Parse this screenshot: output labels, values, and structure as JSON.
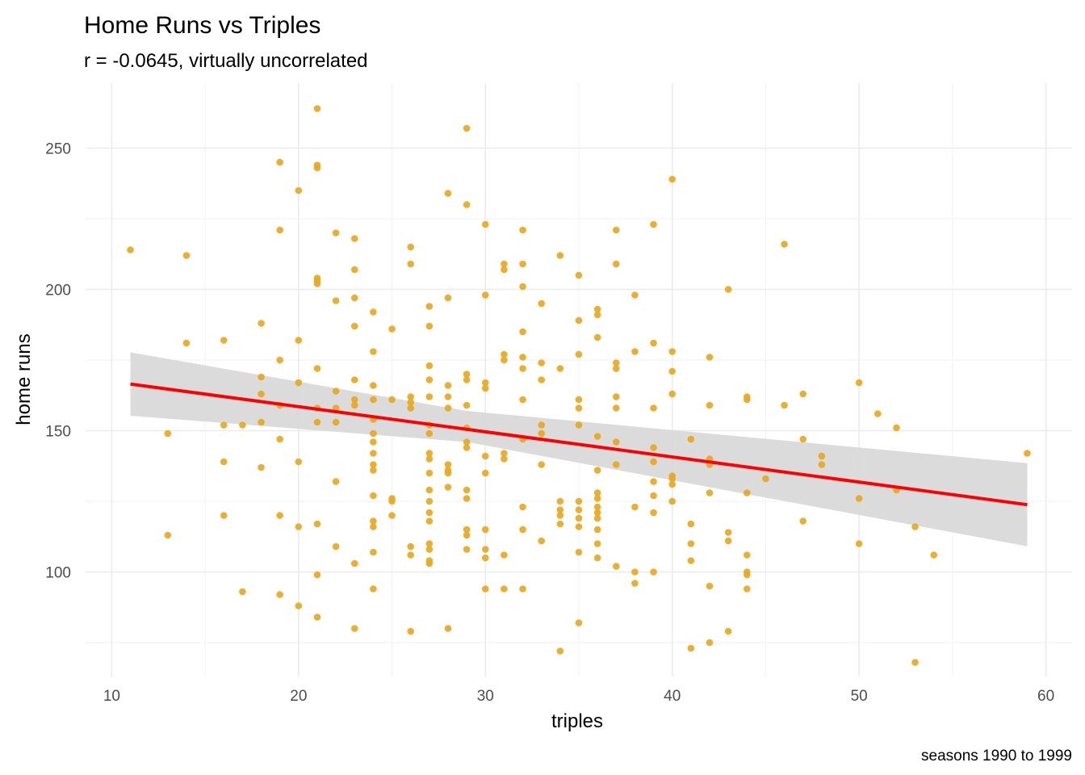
{
  "chart_data": {
    "type": "scatter",
    "title": "Home Runs vs Triples",
    "subtitle": "r = -0.0645, virtually uncorrelated",
    "xlabel": "triples",
    "ylabel": "home runs",
    "caption": "seasons 1990 to 1999",
    "xlim": [
      8.6,
      61.4
    ],
    "ylim": [
      63,
      273
    ],
    "x_ticks": [
      10,
      20,
      30,
      40,
      50,
      60
    ],
    "y_ticks": [
      100,
      150,
      200,
      250
    ],
    "x_tick_labels": [
      "10",
      "20",
      "30",
      "40",
      "50",
      "60"
    ],
    "y_tick_labels": [
      "100",
      "150",
      "200",
      "250"
    ],
    "grid": true,
    "legend": "none",
    "colors": {
      "points": "#E8A820",
      "trend": "#FF0000",
      "band": "#D9D9D9"
    },
    "trend_line": {
      "x": [
        11,
        59
      ],
      "y": [
        166.5,
        123.8
      ]
    },
    "confidence_band": {
      "x": [
        11,
        29,
        59
      ],
      "upper": [
        177.7,
        157,
        138.5
      ],
      "lower": [
        155.3,
        146,
        109.1
      ]
    },
    "points": [
      [
        11,
        214
      ],
      [
        13,
        149
      ],
      [
        13,
        113
      ],
      [
        14,
        212
      ],
      [
        14,
        181
      ],
      [
        16,
        182
      ],
      [
        16,
        152
      ],
      [
        16,
        139
      ],
      [
        16,
        120
      ],
      [
        17,
        152
      ],
      [
        17,
        93
      ],
      [
        18,
        188
      ],
      [
        18,
        169
      ],
      [
        18,
        163
      ],
      [
        18,
        153
      ],
      [
        18,
        137
      ],
      [
        19,
        245
      ],
      [
        19,
        221
      ],
      [
        19,
        175
      ],
      [
        19,
        159
      ],
      [
        19,
        147
      ],
      [
        19,
        120
      ],
      [
        19,
        92
      ],
      [
        20,
        235
      ],
      [
        20,
        182
      ],
      [
        20,
        167
      ],
      [
        20,
        139
      ],
      [
        20,
        116
      ],
      [
        20,
        88
      ],
      [
        21,
        264
      ],
      [
        21,
        244
      ],
      [
        21,
        243
      ],
      [
        21,
        204
      ],
      [
        21,
        203
      ],
      [
        21,
        202
      ],
      [
        21,
        172
      ],
      [
        21,
        158
      ],
      [
        21,
        153
      ],
      [
        21,
        117
      ],
      [
        21,
        99
      ],
      [
        21,
        84
      ],
      [
        22,
        220
      ],
      [
        22,
        196
      ],
      [
        22,
        164
      ],
      [
        22,
        158
      ],
      [
        22,
        153
      ],
      [
        22,
        132
      ],
      [
        22,
        109
      ],
      [
        23,
        218
      ],
      [
        23,
        207
      ],
      [
        23,
        197
      ],
      [
        23,
        187
      ],
      [
        23,
        168
      ],
      [
        23,
        161
      ],
      [
        23,
        159
      ],
      [
        23,
        103
      ],
      [
        23,
        80
      ],
      [
        24,
        192
      ],
      [
        24,
        178
      ],
      [
        24,
        166
      ],
      [
        24,
        161
      ],
      [
        24,
        154
      ],
      [
        24,
        149
      ],
      [
        24,
        146
      ],
      [
        24,
        142
      ],
      [
        24,
        138
      ],
      [
        24,
        136
      ],
      [
        24,
        127
      ],
      [
        24,
        118
      ],
      [
        24,
        116
      ],
      [
        24,
        107
      ],
      [
        24,
        94
      ],
      [
        25,
        186
      ],
      [
        25,
        161
      ],
      [
        25,
        126
      ],
      [
        25,
        125
      ],
      [
        25,
        120
      ],
      [
        26,
        215
      ],
      [
        26,
        209
      ],
      [
        26,
        162
      ],
      [
        26,
        160
      ],
      [
        26,
        158
      ],
      [
        26,
        109
      ],
      [
        26,
        106
      ],
      [
        26,
        79
      ],
      [
        27,
        194
      ],
      [
        27,
        187
      ],
      [
        27,
        173
      ],
      [
        27,
        168
      ],
      [
        27,
        162
      ],
      [
        27,
        152
      ],
      [
        27,
        149
      ],
      [
        27,
        142
      ],
      [
        27,
        140
      ],
      [
        27,
        135
      ],
      [
        27,
        129
      ],
      [
        27,
        125
      ],
      [
        27,
        121
      ],
      [
        27,
        118
      ],
      [
        27,
        110
      ],
      [
        27,
        108
      ],
      [
        27,
        104
      ],
      [
        27,
        103
      ],
      [
        28,
        234
      ],
      [
        28,
        197
      ],
      [
        28,
        166
      ],
      [
        28,
        162
      ],
      [
        28,
        158
      ],
      [
        28,
        138
      ],
      [
        28,
        136
      ],
      [
        28,
        135
      ],
      [
        28,
        130
      ],
      [
        28,
        80
      ],
      [
        29,
        257
      ],
      [
        29,
        230
      ],
      [
        29,
        170
      ],
      [
        29,
        168
      ],
      [
        29,
        159
      ],
      [
        29,
        151
      ],
      [
        29,
        146
      ],
      [
        29,
        144
      ],
      [
        29,
        129
      ],
      [
        29,
        126
      ],
      [
        29,
        115
      ],
      [
        29,
        113
      ],
      [
        29,
        108
      ],
      [
        30,
        223
      ],
      [
        30,
        198
      ],
      [
        30,
        167
      ],
      [
        30,
        165
      ],
      [
        30,
        141
      ],
      [
        30,
        135
      ],
      [
        30,
        115
      ],
      [
        30,
        108
      ],
      [
        30,
        105
      ],
      [
        30,
        94
      ],
      [
        31,
        209
      ],
      [
        31,
        207
      ],
      [
        31,
        177
      ],
      [
        31,
        175
      ],
      [
        31,
        142
      ],
      [
        31,
        140
      ],
      [
        31,
        106
      ],
      [
        31,
        94
      ],
      [
        32,
        221
      ],
      [
        32,
        209
      ],
      [
        32,
        201
      ],
      [
        32,
        185
      ],
      [
        32,
        176
      ],
      [
        32,
        172
      ],
      [
        32,
        161
      ],
      [
        32,
        147
      ],
      [
        32,
        123
      ],
      [
        32,
        115
      ],
      [
        32,
        94
      ],
      [
        33,
        195
      ],
      [
        33,
        174
      ],
      [
        33,
        168
      ],
      [
        33,
        152
      ],
      [
        33,
        149
      ],
      [
        33,
        138
      ],
      [
        33,
        111
      ],
      [
        34,
        212
      ],
      [
        34,
        172
      ],
      [
        34,
        125
      ],
      [
        34,
        122
      ],
      [
        34,
        120
      ],
      [
        34,
        117
      ],
      [
        34,
        72
      ],
      [
        35,
        205
      ],
      [
        35,
        189
      ],
      [
        35,
        177
      ],
      [
        35,
        161
      ],
      [
        35,
        158
      ],
      [
        35,
        152
      ],
      [
        35,
        125
      ],
      [
        35,
        122
      ],
      [
        35,
        119
      ],
      [
        35,
        116
      ],
      [
        35,
        107
      ],
      [
        35,
        82
      ],
      [
        36,
        193
      ],
      [
        36,
        191
      ],
      [
        36,
        183
      ],
      [
        36,
        148
      ],
      [
        36,
        136
      ],
      [
        36,
        128
      ],
      [
        36,
        126
      ],
      [
        36,
        123
      ],
      [
        36,
        121
      ],
      [
        36,
        119
      ],
      [
        36,
        115
      ],
      [
        36,
        110
      ],
      [
        36,
        105
      ],
      [
        37,
        221
      ],
      [
        37,
        209
      ],
      [
        37,
        174
      ],
      [
        37,
        172
      ],
      [
        37,
        162
      ],
      [
        37,
        158
      ],
      [
        37,
        146
      ],
      [
        37,
        138
      ],
      [
        37,
        102
      ],
      [
        38,
        198
      ],
      [
        38,
        178
      ],
      [
        38,
        123
      ],
      [
        38,
        100
      ],
      [
        38,
        96
      ],
      [
        39,
        223
      ],
      [
        39,
        181
      ],
      [
        39,
        158
      ],
      [
        39,
        144
      ],
      [
        39,
        139
      ],
      [
        39,
        132
      ],
      [
        39,
        127
      ],
      [
        39,
        121
      ],
      [
        39,
        100
      ],
      [
        40,
        239
      ],
      [
        40,
        178
      ],
      [
        40,
        171
      ],
      [
        40,
        163
      ],
      [
        40,
        134
      ],
      [
        40,
        133
      ],
      [
        40,
        131
      ],
      [
        40,
        125
      ],
      [
        41,
        147
      ],
      [
        41,
        117
      ],
      [
        41,
        110
      ],
      [
        41,
        104
      ],
      [
        41,
        73
      ],
      [
        42,
        176
      ],
      [
        42,
        159
      ],
      [
        42,
        140
      ],
      [
        42,
        138
      ],
      [
        42,
        128
      ],
      [
        42,
        95
      ],
      [
        42,
        75
      ],
      [
        43,
        200
      ],
      [
        43,
        114
      ],
      [
        43,
        111
      ],
      [
        43,
        79
      ],
      [
        44,
        162
      ],
      [
        44,
        161
      ],
      [
        44,
        128
      ],
      [
        44,
        106
      ],
      [
        44,
        100
      ],
      [
        44,
        99
      ],
      [
        44,
        94
      ],
      [
        45,
        133
      ],
      [
        46,
        216
      ],
      [
        46,
        159
      ],
      [
        47,
        163
      ],
      [
        47,
        147
      ],
      [
        47,
        118
      ],
      [
        48,
        141
      ],
      [
        48,
        138
      ],
      [
        50,
        167
      ],
      [
        50,
        126
      ],
      [
        50,
        110
      ],
      [
        51,
        156
      ],
      [
        52,
        151
      ],
      [
        52,
        129
      ],
      [
        53,
        116
      ],
      [
        53,
        68
      ],
      [
        54,
        106
      ],
      [
        59,
        142
      ]
    ]
  }
}
